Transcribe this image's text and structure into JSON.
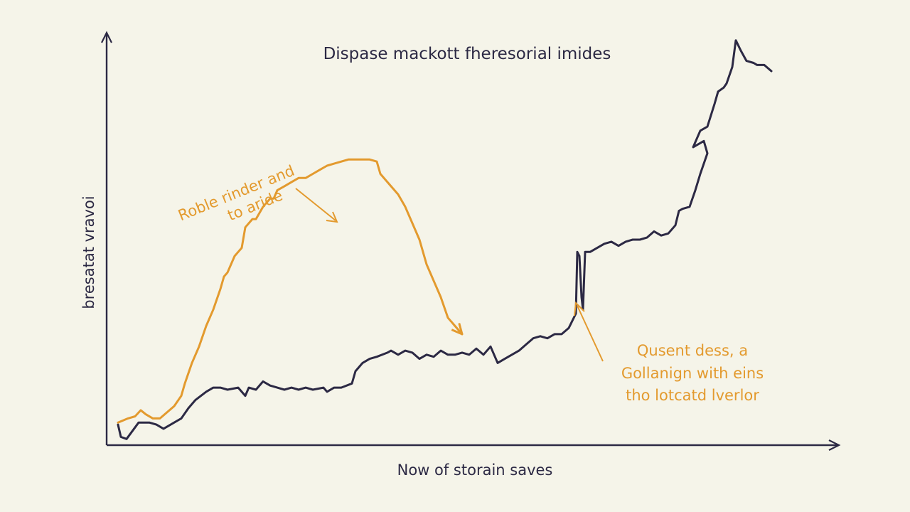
{
  "chart_data": {
    "type": "line",
    "title": "Dispase mackott fheresorial imides",
    "xlabel": "Now of storain saves",
    "ylabel": "bresatat vravoi",
    "xlim": [
      0,
      100
    ],
    "ylim": [
      0,
      100
    ],
    "grid": false,
    "colors": {
      "dark": "#2c2944",
      "orange": "#e39a2e"
    },
    "series": [
      {
        "color": "#2c2944",
        "points": [
          [
            1.6,
            5
          ],
          [
            2,
            2
          ],
          [
            2.8,
            1.5
          ],
          [
            4.5,
            5.5
          ],
          [
            6,
            5.5
          ],
          [
            7,
            5
          ],
          [
            8,
            4
          ],
          [
            9.5,
            5.5
          ],
          [
            10.5,
            6.5
          ],
          [
            11.5,
            9
          ],
          [
            12.5,
            11
          ],
          [
            14,
            13
          ],
          [
            15,
            14
          ],
          [
            16,
            14
          ],
          [
            17,
            13.5
          ],
          [
            18.5,
            14
          ],
          [
            19,
            13
          ],
          [
            19.5,
            12
          ],
          [
            20,
            14
          ],
          [
            21,
            13.5
          ],
          [
            22,
            15.5
          ],
          [
            23,
            14.5
          ],
          [
            24,
            14
          ],
          [
            25,
            13.5
          ],
          [
            26,
            14
          ],
          [
            27,
            13.5
          ],
          [
            28,
            14
          ],
          [
            29,
            13.5
          ],
          [
            30.5,
            14
          ],
          [
            31,
            13
          ],
          [
            32,
            14
          ],
          [
            33,
            14
          ],
          [
            34.5,
            15
          ],
          [
            35,
            18
          ],
          [
            36,
            20
          ],
          [
            37,
            21
          ],
          [
            38,
            21.5
          ],
          [
            39.5,
            22.5
          ],
          [
            40,
            23
          ],
          [
            41,
            22
          ],
          [
            42,
            23
          ],
          [
            43,
            22.5
          ],
          [
            44,
            21
          ],
          [
            45,
            22
          ],
          [
            46,
            21.5
          ],
          [
            47,
            23
          ],
          [
            48,
            22
          ],
          [
            49,
            22
          ],
          [
            50,
            22.5
          ],
          [
            51,
            22
          ],
          [
            52,
            23.5
          ],
          [
            53,
            22
          ],
          [
            54,
            24
          ],
          [
            55,
            20
          ],
          [
            56,
            21
          ],
          [
            57,
            22
          ],
          [
            58,
            23
          ],
          [
            59,
            24.5
          ],
          [
            60,
            26
          ],
          [
            61,
            26.5
          ],
          [
            62,
            26
          ],
          [
            63,
            27
          ],
          [
            64,
            27
          ],
          [
            65,
            28.5
          ],
          [
            66,
            32
          ],
          [
            66.2,
            47
          ],
          [
            66.5,
            46
          ],
          [
            66.8,
            36
          ],
          [
            67,
            33
          ],
          [
            67.3,
            47
          ],
          [
            68,
            47
          ],
          [
            69,
            48
          ],
          [
            70,
            49
          ],
          [
            71,
            49.5
          ],
          [
            72,
            48.5
          ],
          [
            73,
            49.5
          ],
          [
            74,
            50
          ],
          [
            75,
            50
          ],
          [
            76,
            50.5
          ],
          [
            77,
            52
          ],
          [
            78,
            51
          ],
          [
            79,
            51.5
          ],
          [
            80,
            53.5
          ],
          [
            80.5,
            57
          ],
          [
            81,
            57.5
          ],
          [
            82,
            58
          ],
          [
            82.8,
            62
          ],
          [
            83.5,
            66
          ],
          [
            84.5,
            71
          ],
          [
            84,
            74
          ],
          [
            82.5,
            72.5
          ],
          [
            83.5,
            76.5
          ],
          [
            84.5,
            77.5
          ],
          [
            85.5,
            83
          ],
          [
            86,
            86
          ],
          [
            86.8,
            87
          ],
          [
            87.2,
            88
          ],
          [
            88,
            92
          ],
          [
            88.5,
            98.5
          ],
          [
            89.2,
            96
          ],
          [
            90,
            93.5
          ],
          [
            91,
            93
          ],
          [
            91.5,
            92.5
          ],
          [
            92.5,
            92.5
          ],
          [
            93.5,
            91
          ]
        ]
      },
      {
        "color": "#e39a2e",
        "points": [
          [
            1.6,
            5.5
          ],
          [
            3,
            6.5
          ],
          [
            4,
            7
          ],
          [
            4.8,
            8.5
          ],
          [
            5.5,
            7.5
          ],
          [
            6.5,
            6.5
          ],
          [
            7.5,
            6.5
          ],
          [
            8.5,
            8
          ],
          [
            9.5,
            9.5
          ],
          [
            10.5,
            12
          ],
          [
            11,
            15
          ],
          [
            12,
            20
          ],
          [
            13,
            24
          ],
          [
            14,
            29
          ],
          [
            15,
            33
          ],
          [
            16,
            38
          ],
          [
            16.5,
            41
          ],
          [
            17,
            42
          ],
          [
            18,
            46
          ],
          [
            18.5,
            47
          ],
          [
            19,
            48
          ],
          [
            19.5,
            53
          ],
          [
            20.5,
            55
          ],
          [
            21,
            55
          ],
          [
            22,
            58
          ],
          [
            23,
            60
          ],
          [
            23.5,
            60
          ],
          [
            24,
            62
          ],
          [
            25,
            63
          ],
          [
            26,
            64
          ],
          [
            27,
            65
          ],
          [
            28,
            65
          ],
          [
            29,
            66
          ],
          [
            30,
            67
          ],
          [
            31,
            68
          ],
          [
            32,
            68.5
          ],
          [
            33,
            69
          ],
          [
            34,
            69.5
          ],
          [
            35,
            69.5
          ],
          [
            36,
            69.5
          ],
          [
            37,
            69.5
          ],
          [
            38,
            69
          ],
          [
            38.5,
            66
          ],
          [
            40,
            63
          ],
          [
            41,
            61
          ],
          [
            42,
            58
          ],
          [
            43,
            54
          ],
          [
            44,
            50
          ],
          [
            45,
            44
          ],
          [
            46,
            40
          ],
          [
            47,
            36
          ],
          [
            48,
            31
          ],
          [
            49,
            29
          ],
          [
            50,
            27
          ]
        ]
      }
    ],
    "annotations": [
      {
        "lines": [
          "Roble rinder and",
          "to aride"
        ]
      },
      {
        "lines": [
          "Qusent dess, a",
          "Gollanign with eins",
          "tho lotcatd lverlor"
        ]
      }
    ]
  }
}
